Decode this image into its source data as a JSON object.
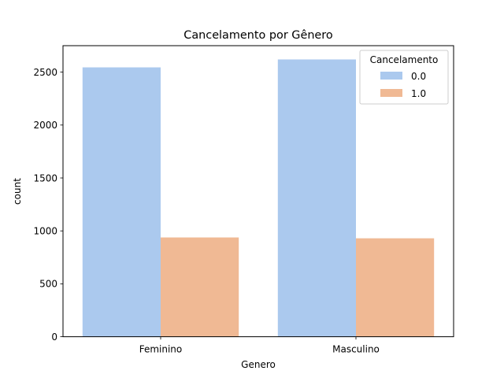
{
  "chart_data": {
    "type": "bar",
    "title": "Cancelamento por Gênero",
    "xlabel": "Genero",
    "ylabel": "count",
    "categories": [
      "Feminino",
      "Masculino"
    ],
    "series": [
      {
        "name": "0.0",
        "values": [
          2545,
          2620
        ],
        "color": "#abc9ee"
      },
      {
        "name": "1.0",
        "values": [
          938,
          930
        ],
        "color": "#f0b994"
      }
    ],
    "ylim": [
      0,
      2750
    ],
    "yticks": [
      0,
      500,
      1000,
      1500,
      2000,
      2500
    ],
    "legend": {
      "title": "Cancelamento",
      "placement": "top-right"
    },
    "grid": false
  }
}
